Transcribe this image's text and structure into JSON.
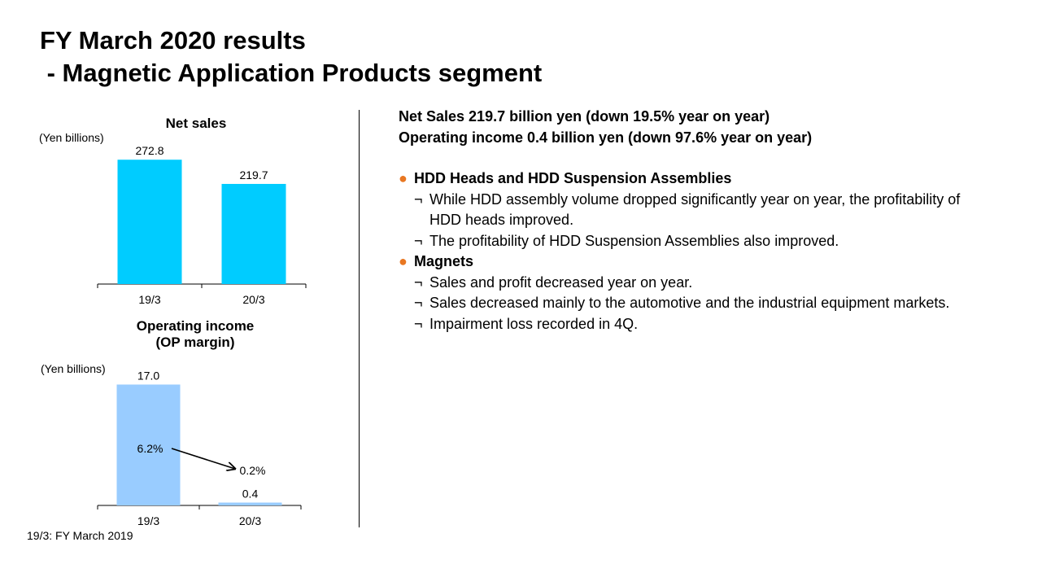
{
  "title": "FY March 2020 results\n - Magnetic Application Products segment",
  "colors": {
    "net_sales_bar": "#00CCFF",
    "op_income_bar": "#99CCFF",
    "bullet": "#E87722"
  },
  "chart_data": [
    {
      "type": "bar",
      "title": "Net sales",
      "unit_label": "(Yen billions)",
      "categories": [
        "19/3",
        "20/3"
      ],
      "values": [
        272.8,
        219.7
      ],
      "data_labels": [
        "272.8",
        "219.7"
      ],
      "ylim": [
        0,
        300
      ],
      "grid": false
    },
    {
      "type": "bar",
      "title": "Operating income\n(OP margin)",
      "unit_label": "(Yen billions)",
      "categories": [
        "19/3",
        "20/3"
      ],
      "values": [
        17.0,
        0.4
      ],
      "data_labels": [
        "17.0",
        "0.4"
      ],
      "margin_labels": [
        "6.2%",
        "0.2%"
      ],
      "ylim": [
        0,
        19
      ],
      "grid": false
    }
  ],
  "footnote": "19/3: FY March 2019",
  "summary": [
    "Net Sales 219.7 billion yen (down 19.5% year on year)",
    "Operating income 0.4 billion yen (down 97.6% year on year)"
  ],
  "sections": [
    {
      "heading": "HDD Heads and HDD Suspension Assemblies",
      "items": [
        "While HDD assembly volume dropped significantly year on year, the profitability of HDD heads improved.",
        "The profitability of HDD Suspension Assemblies also improved."
      ]
    },
    {
      "heading": "Magnets",
      "items": [
        "Sales and profit decreased year on year.",
        "Sales decreased mainly to the automotive and the industrial equipment markets.",
        "Impairment loss recorded in 4Q."
      ]
    }
  ],
  "bullet_glyph": "●",
  "sub_glyph": "¬"
}
